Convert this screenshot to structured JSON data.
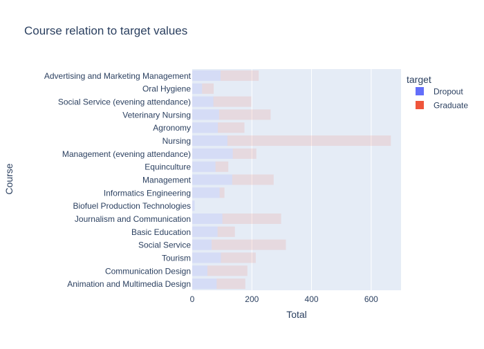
{
  "chart_data": {
    "type": "bar",
    "orientation": "horizontal",
    "barmode": "stack",
    "title": "Course relation to target values",
    "xlabel": "Total",
    "ylabel": "Course",
    "xlim": [
      0,
      700
    ],
    "xticks": [
      0,
      200,
      400,
      600
    ],
    "grid": true,
    "legend_title": "target",
    "legend_position": "right",
    "categories": [
      "Advertising and Marketing Management",
      "Oral Hygiene",
      "Social Service (evening attendance)",
      "Veterinary Nursing",
      "Agronomy",
      "Nursing",
      "Management (evening attendance)",
      "Equinculture",
      "Management",
      "Informatics Engineering",
      "Biofuel Production Technologies",
      "Journalism and Communication",
      "Basic Education",
      "Social Service",
      "Tourism",
      "Communication Design",
      "Animation and Multimedia Design"
    ],
    "series": [
      {
        "name": "Dropout",
        "color": "#636efa",
        "values": [
          95,
          33,
          71,
          90,
          86,
          118,
          136,
          78,
          134,
          92,
          8,
          101,
          85,
          65,
          96,
          51,
          82
        ]
      },
      {
        "name": "Graduate",
        "color": "#ef553b",
        "values": [
          128,
          39,
          127,
          173,
          89,
          548,
          79,
          43,
          139,
          16,
          0,
          197,
          58,
          249,
          117,
          134,
          96
        ]
      }
    ]
  }
}
